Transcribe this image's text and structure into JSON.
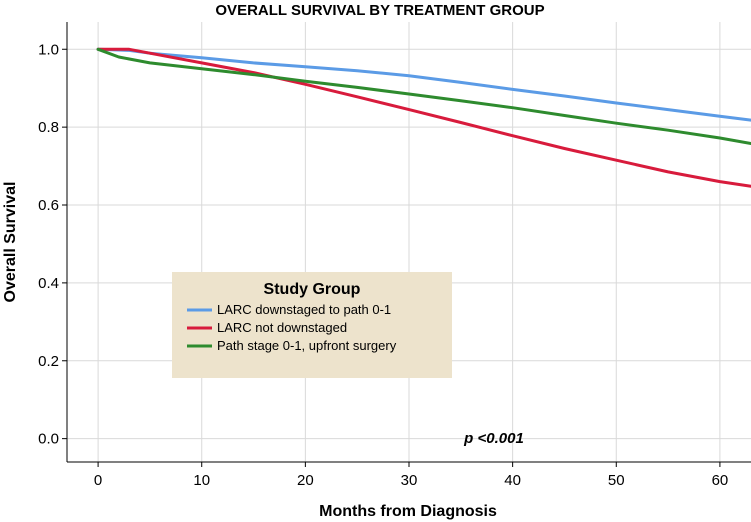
{
  "chart_data": {
    "type": "line",
    "title": "OVERALL SURVIVAL BY TREATMENT GROUP",
    "xlabel": "Months from Diagnosis",
    "ylabel": "Overall Survival",
    "xlim": [
      -3,
      63
    ],
    "ylim": [
      -0.06,
      1.07
    ],
    "xticks": [
      0,
      10,
      20,
      30,
      40,
      50,
      60
    ],
    "yticks": [
      0.0,
      0.2,
      0.4,
      0.6,
      0.8,
      1.0
    ],
    "xtick_labels": [
      "0",
      "10",
      "20",
      "30",
      "40",
      "50",
      "60"
    ],
    "ytick_labels": [
      "0.0",
      "0.2",
      "0.4",
      "0.6",
      "0.8",
      "1.0"
    ],
    "grid": true,
    "legend_title": "Study Group",
    "legend_position": "center-left",
    "annotation": "p <0.001",
    "series": [
      {
        "name": "LARC downstaged to path 0-1",
        "color": "#5b9be6",
        "x": [
          0,
          3,
          5,
          10,
          15,
          20,
          25,
          30,
          35,
          40,
          45,
          50,
          55,
          60,
          63
        ],
        "y": [
          1.0,
          0.997,
          0.99,
          0.978,
          0.965,
          0.955,
          0.945,
          0.932,
          0.915,
          0.897,
          0.88,
          0.862,
          0.845,
          0.828,
          0.818
        ]
      },
      {
        "name": "LARC not downstaged",
        "color": "#d81b3c",
        "x": [
          0,
          3,
          5,
          10,
          15,
          20,
          25,
          30,
          35,
          40,
          45,
          50,
          55,
          60,
          63
        ],
        "y": [
          1.0,
          1.0,
          0.99,
          0.965,
          0.94,
          0.91,
          0.878,
          0.845,
          0.812,
          0.778,
          0.745,
          0.715,
          0.685,
          0.66,
          0.648
        ]
      },
      {
        "name": "Path stage 0-1, upfront surgery",
        "color": "#2e8b2e",
        "x": [
          0,
          2,
          5,
          10,
          15,
          20,
          25,
          30,
          35,
          40,
          45,
          50,
          55,
          60,
          63
        ],
        "y": [
          1.0,
          0.98,
          0.965,
          0.95,
          0.935,
          0.918,
          0.902,
          0.885,
          0.868,
          0.85,
          0.83,
          0.81,
          0.792,
          0.772,
          0.758
        ]
      }
    ]
  }
}
